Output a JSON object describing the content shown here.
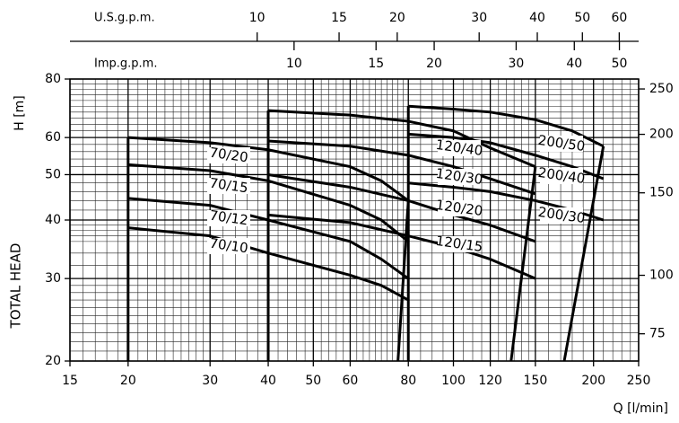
{
  "chart_data": {
    "type": "line",
    "y_axis_label": "H [m]",
    "y_axis_title": "TOTAL HEAD",
    "x_axis_label": "Q [l/min]",
    "log_x": true,
    "log_y": true,
    "grid": true,
    "color": "#000000",
    "xlim": [
      15,
      250
    ],
    "xticks": [
      15,
      20,
      30,
      40,
      50,
      60,
      80,
      100,
      120,
      150,
      200,
      250
    ],
    "xgrid": [
      16,
      17,
      18,
      19,
      21,
      22,
      23,
      24,
      25,
      26,
      27,
      28,
      29,
      32,
      34,
      36,
      38,
      42,
      44,
      46,
      48,
      52,
      54,
      56,
      58,
      62,
      64,
      66,
      68,
      70,
      72,
      74,
      76,
      78,
      85,
      90,
      95,
      105,
      110,
      115,
      125,
      130,
      135,
      140,
      145,
      160,
      170,
      180,
      190,
      210,
      220,
      230,
      240
    ],
    "ylim": [
      20,
      80
    ],
    "yticks": [
      20,
      30,
      40,
      50,
      60,
      80
    ],
    "ygrid": [
      21,
      22,
      23,
      24,
      25,
      26,
      27,
      28,
      29,
      32,
      34,
      36,
      37,
      38,
      39,
      42,
      44,
      46,
      48,
      52,
      54,
      56,
      58,
      62,
      64,
      66,
      68,
      70,
      72,
      74,
      76,
      78
    ],
    "y2lim": [
      65.6,
      262.5
    ],
    "y2ticks": [
      75,
      100,
      150,
      200,
      250
    ],
    "top_axes": [
      {
        "label": "U.S.g.p.m.",
        "xlim": [
          3.96,
          66.05
        ],
        "xticks": [
          10,
          15,
          20,
          30,
          40,
          50,
          60
        ]
      },
      {
        "label": "Imp.g.p.m.",
        "xlim": [
          3.3,
          54.99
        ],
        "xticks": [
          10,
          15,
          20,
          30,
          40,
          50
        ]
      }
    ],
    "series": [
      {
        "name": "70/20",
        "x": [
          20,
          30,
          40,
          60,
          70,
          80
        ],
        "values": [
          60,
          58.5,
          56.5,
          52,
          48.5,
          44
        ]
      },
      {
        "name": "70/15",
        "x": [
          20,
          30,
          40,
          60,
          70,
          80
        ],
        "values": [
          52.5,
          51,
          48.5,
          43,
          40,
          36
        ]
      },
      {
        "name": "70/12",
        "x": [
          20,
          30,
          40,
          60,
          70,
          80
        ],
        "values": [
          44.5,
          43,
          40,
          36,
          33,
          30
        ]
      },
      {
        "name": "70/10",
        "x": [
          20,
          30,
          40,
          60,
          70,
          80
        ],
        "values": [
          38.5,
          37,
          34,
          30.5,
          29,
          27
        ]
      },
      {
        "name": "120/40",
        "x": [
          40,
          60,
          80,
          100,
          120,
          150
        ],
        "values": [
          68.5,
          67,
          65,
          62,
          57,
          52
        ]
      },
      {
        "name": "120/30",
        "x": [
          40,
          60,
          80,
          100,
          120,
          150
        ],
        "values": [
          59,
          57.5,
          55,
          52,
          49,
          45.5
        ]
      },
      {
        "name": "120/20",
        "x": [
          40,
          60,
          80,
          100,
          120,
          150
        ],
        "values": [
          50,
          47,
          44,
          41,
          39,
          36
        ]
      },
      {
        "name": "120/15",
        "x": [
          40,
          60,
          80,
          100,
          120,
          150
        ],
        "values": [
          41,
          39.5,
          37,
          35,
          33,
          30
        ]
      },
      {
        "name": "200/50",
        "x": [
          80,
          100,
          120,
          150,
          180,
          210
        ],
        "values": [
          70,
          69,
          68,
          65.5,
          62,
          57.5
        ]
      },
      {
        "name": "200/40",
        "x": [
          80,
          100,
          120,
          150,
          180,
          210
        ],
        "values": [
          61,
          60,
          58.5,
          55,
          52,
          49
        ]
      },
      {
        "name": "200/30",
        "x": [
          80,
          100,
          120,
          150,
          180,
          210
        ],
        "values": [
          48,
          47,
          46,
          44,
          42,
          40
        ]
      }
    ],
    "boundaries": [
      {
        "x": [
          20,
          20
        ],
        "values": [
          20,
          60
        ]
      },
      {
        "x": [
          40,
          40
        ],
        "values": [
          20,
          68.5
        ]
      },
      {
        "x": [
          80,
          80
        ],
        "values": [
          20,
          70
        ]
      },
      {
        "x": [
          76,
          80
        ],
        "values": [
          20,
          44
        ]
      },
      {
        "x": [
          133,
          150
        ],
        "values": [
          20,
          52
        ]
      },
      {
        "x": [
          173,
          210
        ],
        "values": [
          20,
          57.5
        ]
      }
    ]
  }
}
